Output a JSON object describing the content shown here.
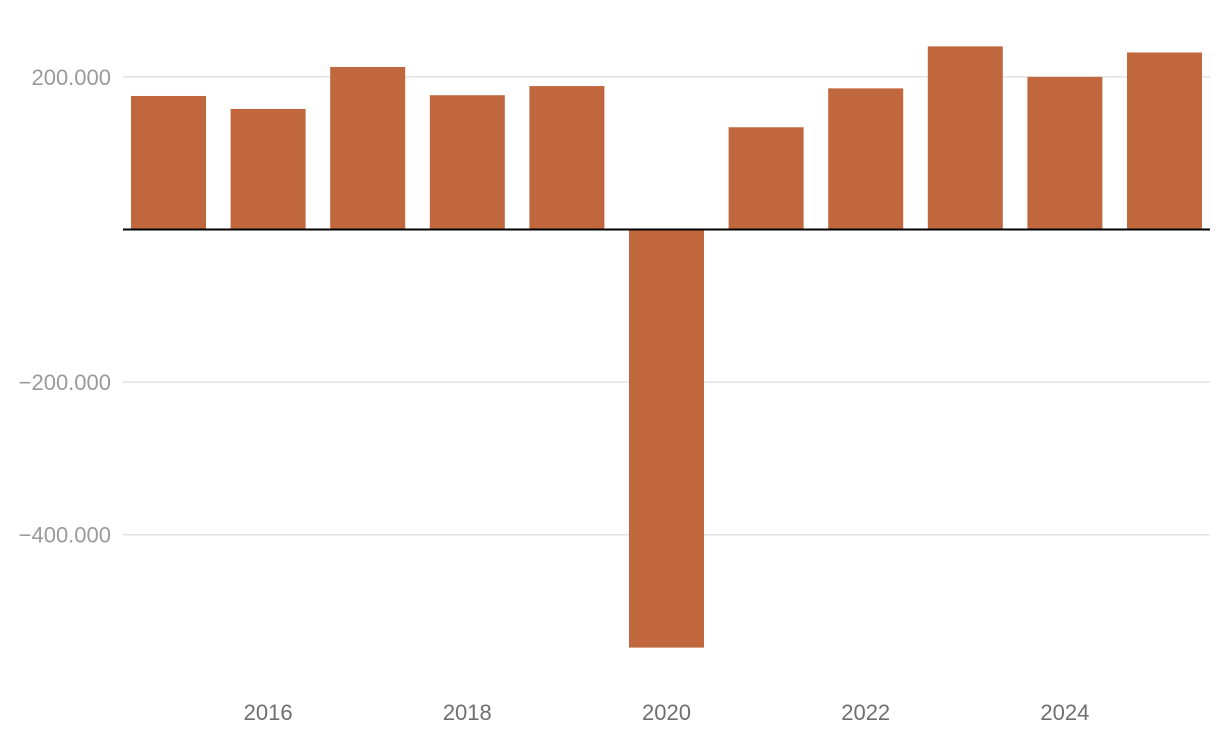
{
  "chart_data": {
    "type": "bar",
    "title": "",
    "xlabel": "",
    "ylabel": "",
    "x": [
      2015,
      2016,
      2017,
      2018,
      2019,
      2020,
      2021,
      2022,
      2023,
      2024,
      2025
    ],
    "values": [
      175000,
      158000,
      213000,
      176000,
      188000,
      -548000,
      134000,
      185000,
      240000,
      200000,
      232000
    ],
    "ylim": [
      -580000,
      240000
    ],
    "y_ticks": [
      200000,
      -200000,
      -400000
    ],
    "y_tick_labels": [
      "200.000",
      "−200.000",
      "−400.000"
    ],
    "x_tick_labels": [
      "2016",
      "2018",
      "2020",
      "2022",
      "2024"
    ],
    "grid": true,
    "legend": "none",
    "colors": {
      "bar": "#c0673e",
      "grid": "#e3e3e3",
      "zero_line": "#000000",
      "y_tick_text": "#9a9a9a",
      "x_tick_text": "#6f6f6f"
    }
  }
}
